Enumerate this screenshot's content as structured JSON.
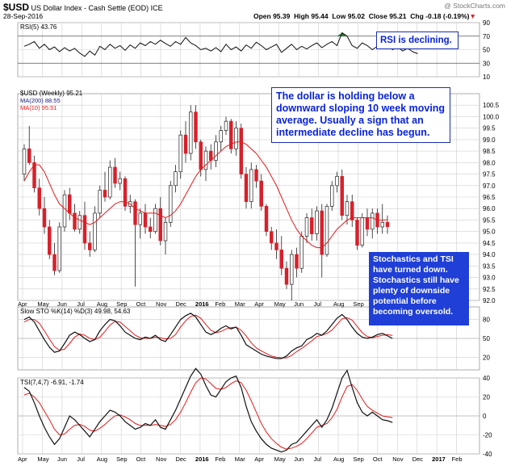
{
  "header": {
    "symbol": "$USD",
    "description": "US Dollar Index - Cash Settle (EOD) ICE",
    "date": "28-Sep-2016",
    "watermark": "@ StockCharts.com",
    "open": "Open 95.39",
    "high": "High 95.44",
    "low": "Low 95.02",
    "close": "Close 95.21",
    "chg": "Chg -0.18 (-0.19%)",
    "chg_arrow": "▼"
  },
  "annotations": {
    "rsi_note": "RSI is declining.",
    "dollar_note": [
      "The dollar is holding below a",
      "downward sloping 10 week moving",
      "average. Usually a sign that an",
      "intermediate decline has begun."
    ],
    "stoch_note": [
      "Stochastics and TSI",
      "have turned down.",
      "Stochastics still have",
      "plenty of downside",
      "potential before",
      "becoming oversold."
    ]
  },
  "colors": {
    "up": "#ffffff",
    "down": "#d8202a",
    "ma_fast": "#e41a1c",
    "ma_slow": "#1a237e",
    "indicator": "#111111",
    "signal": "#e41a1c",
    "grid": "#cfcfcf",
    "rsi_fill": "#2e7d32",
    "note_blue": "#1f3fd6"
  },
  "chart_data": [
    {
      "type": "line",
      "name": "RSI panel",
      "legend": [
        "RSI(5) 43.76"
      ],
      "ylim": [
        10,
        90
      ],
      "yticks": [
        10,
        30,
        50,
        70,
        90
      ],
      "bands": [
        30,
        70
      ],
      "x": [
        0,
        1,
        2,
        3,
        4,
        5,
        6,
        7,
        8,
        9,
        10,
        11,
        12,
        13,
        14,
        15,
        16,
        17,
        18,
        19,
        20,
        21,
        22,
        23,
        24,
        25,
        26,
        27,
        28,
        29,
        30,
        31,
        32,
        33,
        34,
        35,
        36,
        37,
        38,
        39,
        40,
        41,
        42,
        43,
        44,
        45,
        46,
        47,
        48,
        49,
        50,
        51,
        52,
        53,
        54,
        55,
        56,
        57,
        58,
        59,
        60,
        61,
        62,
        63,
        64,
        65,
        66,
        67,
        68,
        69,
        70,
        71,
        72,
        73,
        74,
        75,
        76,
        77,
        78
      ],
      "values": [
        55,
        58,
        62,
        52,
        58,
        50,
        54,
        47,
        53,
        48,
        52,
        45,
        40,
        48,
        42,
        55,
        50,
        58,
        52,
        56,
        49,
        57,
        52,
        60,
        56,
        62,
        58,
        64,
        59,
        55,
        62,
        58,
        68,
        60,
        56,
        50,
        52,
        48,
        53,
        47,
        58,
        50,
        54,
        48,
        57,
        52,
        61,
        56,
        50,
        54,
        58,
        46,
        52,
        58,
        50,
        55,
        51,
        56,
        60,
        53,
        58,
        62,
        56,
        75,
        70,
        56,
        52,
        60,
        56,
        50,
        55,
        52,
        58,
        50,
        54,
        48,
        52,
        47,
        44
      ]
    },
    {
      "type": "candlestick",
      "name": "Price panel",
      "legend": [
        "$USD (Weekly) 95.21",
        "MA(200) 88.55",
        "MA(10) 95.51"
      ],
      "ylim": [
        92,
        101
      ],
      "yticks": [
        92.0,
        92.5,
        93.0,
        93.5,
        94.0,
        94.5,
        95.0,
        95.5,
        96.0,
        96.5,
        97.0,
        97.5,
        98.0,
        98.5,
        99.0,
        99.5,
        100.0,
        100.5
      ],
      "xlabels": [
        "Apr",
        "May",
        "Jun",
        "Jul",
        "Aug",
        "Sep",
        "Oct",
        "Nov",
        "Dec",
        "2016",
        "Feb",
        "Mar",
        "Apr",
        "May",
        "Jun",
        "Jul",
        "Aug",
        "Sep",
        "Oct",
        "Nov",
        "Dec",
        "2017",
        "Feb"
      ],
      "ohlc": [
        [
          97.5,
          98.8,
          97.2,
          98.6
        ],
        [
          98.6,
          99.6,
          97.9,
          98.0
        ],
        [
          98.0,
          98.3,
          96.7,
          96.9
        ],
        [
          96.9,
          97.3,
          95.7,
          96.0
        ],
        [
          96.0,
          96.5,
          94.9,
          95.2
        ],
        [
          95.2,
          95.5,
          93.8,
          94.0
        ],
        [
          94.0,
          94.5,
          93.1,
          93.3
        ],
        [
          93.3,
          95.4,
          93.2,
          95.2
        ],
        [
          95.2,
          96.8,
          95.0,
          96.6
        ],
        [
          96.6,
          96.9,
          95.5,
          95.8
        ],
        [
          95.8,
          96.2,
          95.0,
          95.1
        ],
        [
          95.1,
          95.9,
          94.9,
          95.7
        ],
        [
          95.7,
          96.3,
          94.2,
          94.5
        ],
        [
          94.5,
          95.0,
          93.9,
          94.2
        ],
        [
          94.2,
          96.1,
          94.1,
          95.8
        ],
        [
          95.8,
          97.0,
          95.6,
          96.8
        ],
        [
          96.8,
          97.6,
          96.3,
          96.5
        ],
        [
          96.5,
          98.1,
          96.4,
          97.8
        ],
        [
          97.8,
          98.2,
          96.9,
          97.1
        ],
        [
          97.1,
          97.6,
          96.8,
          97.3
        ],
        [
          97.3,
          97.4,
          95.9,
          96.1
        ],
        [
          96.1,
          96.6,
          95.8,
          96.3
        ],
        [
          96.3,
          96.4,
          92.6,
          95.3
        ],
        [
          95.3,
          96.0,
          94.7,
          95.8
        ],
        [
          95.8,
          96.2,
          94.9,
          95.2
        ],
        [
          95.2,
          95.6,
          94.7,
          95.0
        ],
        [
          95.0,
          96.2,
          94.9,
          96.0
        ],
        [
          96.0,
          96.5,
          94.4,
          94.6
        ],
        [
          94.6,
          95.6,
          94.0,
          95.4
        ],
        [
          95.4,
          97.2,
          95.2,
          97.0
        ],
        [
          97.0,
          97.9,
          96.7,
          97.6
        ],
        [
          97.6,
          99.4,
          97.3,
          99.2
        ],
        [
          99.2,
          99.8,
          98.0,
          98.4
        ],
        [
          98.4,
          100.5,
          98.1,
          100.2
        ],
        [
          100.2,
          100.5,
          98.6,
          98.9
        ],
        [
          98.9,
          99.0,
          97.4,
          97.7
        ],
        [
          97.7,
          98.7,
          97.2,
          98.5
        ],
        [
          98.5,
          98.8,
          97.7,
          98.1
        ],
        [
          98.1,
          99.2,
          97.8,
          98.9
        ],
        [
          98.9,
          99.6,
          98.5,
          99.4
        ],
        [
          99.4,
          100.0,
          99.2,
          99.8
        ],
        [
          99.8,
          99.9,
          98.4,
          98.6
        ],
        [
          98.6,
          99.8,
          98.3,
          99.5
        ],
        [
          99.5,
          99.7,
          97.3,
          97.5
        ],
        [
          97.5,
          97.8,
          96.0,
          96.3
        ],
        [
          96.3,
          98.0,
          96.0,
          97.7
        ],
        [
          97.7,
          97.9,
          96.9,
          97.2
        ],
        [
          97.2,
          97.5,
          95.9,
          96.1
        ],
        [
          96.1,
          96.2,
          94.8,
          95.0
        ],
        [
          95.0,
          95.2,
          94.2,
          94.5
        ],
        [
          94.5,
          95.1,
          93.8,
          94.2
        ],
        [
          94.2,
          94.8,
          93.1,
          93.4
        ],
        [
          93.4,
          93.7,
          92.5,
          92.7
        ],
        [
          92.7,
          94.2,
          92.0,
          94.0
        ],
        [
          94.0,
          94.3,
          93.0,
          93.4
        ],
        [
          93.4,
          95.0,
          93.2,
          94.8
        ],
        [
          94.8,
          95.8,
          94.5,
          95.6
        ],
        [
          95.6,
          96.0,
          94.6,
          94.9
        ],
        [
          94.9,
          96.1,
          94.6,
          95.9
        ],
        [
          95.9,
          96.2,
          93.0,
          94.0
        ],
        [
          94.0,
          96.2,
          93.9,
          96.1
        ],
        [
          96.1,
          97.2,
          95.9,
          97.0
        ],
        [
          97.0,
          97.6,
          96.7,
          97.4
        ],
        [
          97.4,
          97.7,
          95.5,
          95.7
        ],
        [
          95.7,
          96.6,
          95.3,
          96.3
        ],
        [
          96.3,
          96.6,
          95.2,
          95.5
        ],
        [
          95.5,
          95.6,
          94.2,
          94.4
        ],
        [
          94.4,
          95.8,
          94.3,
          95.6
        ],
        [
          95.6,
          96.0,
          94.8,
          95.1
        ],
        [
          95.1,
          96.0,
          94.7,
          95.8
        ],
        [
          95.8,
          96.0,
          94.9,
          95.2
        ],
        [
          95.2,
          96.2,
          94.9,
          95.4
        ],
        [
          95.4,
          95.7,
          94.9,
          95.21
        ]
      ],
      "ma10": [
        97.2,
        97.6,
        97.9,
        97.9,
        97.6,
        97.1,
        96.6,
        96.2,
        96.0,
        95.8,
        95.6,
        95.5,
        95.4,
        95.3,
        95.4,
        95.6,
        95.8,
        96.0,
        96.2,
        96.3,
        96.3,
        96.2,
        96.0,
        95.9,
        95.8,
        95.8,
        95.8,
        95.7,
        95.6,
        95.7,
        95.9,
        96.2,
        96.6,
        97.0,
        97.4,
        97.7,
        97.9,
        98.1,
        98.3,
        98.5,
        98.7,
        98.8,
        98.9,
        98.9,
        98.8,
        98.6,
        98.4,
        98.1,
        97.8,
        97.4,
        97.0,
        96.5,
        96.0,
        95.5,
        95.1,
        94.8,
        94.6,
        94.4,
        94.3,
        94.3,
        94.5,
        94.8,
        95.1,
        95.3,
        95.5,
        95.6,
        95.6,
        95.6,
        95.6,
        95.6,
        95.5,
        95.5,
        95.51
      ]
    },
    {
      "type": "line",
      "name": "Slow Stochastic panel",
      "legend": [
        "Slow STO %K(14) %D(3) 49.98, 54.63"
      ],
      "ylim": [
        0,
        100
      ],
      "yticks": [
        20,
        50,
        80
      ],
      "series": [
        {
          "name": "%K",
          "values": [
            80,
            84,
            76,
            62,
            48,
            36,
            28,
            30,
            42,
            55,
            60,
            56,
            50,
            45,
            48,
            62,
            72,
            80,
            78,
            70,
            60,
            55,
            50,
            48,
            52,
            50,
            55,
            48,
            45,
            56,
            68,
            80,
            86,
            90,
            84,
            72,
            60,
            56,
            60,
            66,
            70,
            65,
            68,
            55,
            40,
            35,
            30,
            25,
            22,
            20,
            18,
            18,
            22,
            30,
            35,
            38,
            48,
            52,
            58,
            55,
            62,
            72,
            82,
            88,
            80,
            68,
            58,
            52,
            50,
            52,
            56,
            58,
            54,
            50
          ]
        },
        {
          "name": "%D",
          "values": [
            76,
            80,
            80,
            74,
            62,
            49,
            37,
            31,
            33,
            42,
            52,
            57,
            55,
            50,
            48,
            52,
            61,
            71,
            77,
            76,
            69,
            62,
            55,
            51,
            50,
            50,
            52,
            51,
            49,
            50,
            56,
            68,
            78,
            85,
            87,
            82,
            72,
            63,
            59,
            61,
            65,
            67,
            68,
            63,
            54,
            43,
            35,
            30,
            26,
            22,
            20,
            19,
            19,
            23,
            29,
            34,
            40,
            46,
            53,
            55,
            58,
            63,
            72,
            81,
            83,
            79,
            69,
            59,
            53,
            51,
            53,
            55,
            56,
            54.63
          ]
        }
      ]
    },
    {
      "type": "line",
      "name": "TSI panel",
      "legend": [
        "TSI(7,4,7) -6.91, -1.74"
      ],
      "ylim": [
        -40,
        40
      ],
      "yticks": [
        -40,
        -20,
        0,
        20,
        40
      ],
      "xlabels": [
        "Apr",
        "May",
        "Jun",
        "Jul",
        "Aug",
        "Sep",
        "Oct",
        "Nov",
        "Dec",
        "2016",
        "Feb",
        "Mar",
        "Apr",
        "May",
        "Jun",
        "Jul",
        "Aug",
        "Sep",
        "Oct",
        "Nov",
        "Dec",
        "2017",
        "Feb"
      ],
      "series": [
        {
          "name": "TSI",
          "values": [
            30,
            26,
            14,
            0,
            -12,
            -22,
            -30,
            -24,
            -12,
            0,
            -4,
            -10,
            -16,
            -22,
            -14,
            -6,
            0,
            6,
            4,
            0,
            -6,
            -10,
            -14,
            -12,
            -8,
            -10,
            -4,
            -12,
            -14,
            -4,
            6,
            18,
            30,
            42,
            50,
            44,
            32,
            22,
            20,
            28,
            36,
            40,
            42,
            30,
            10,
            -6,
            -16,
            -24,
            -30,
            -34,
            -36,
            -38,
            -36,
            -30,
            -28,
            -22,
            -16,
            -10,
            -4,
            -12,
            -4,
            8,
            24,
            40,
            48,
            30,
            14,
            4,
            0,
            4,
            0,
            -4,
            -5,
            -6.91
          ]
        },
        {
          "name": "Signal",
          "values": [
            22,
            24,
            20,
            14,
            5,
            -4,
            -14,
            -20,
            -19,
            -14,
            -10,
            -9,
            -11,
            -15,
            -16,
            -13,
            -9,
            -4,
            0,
            1,
            -1,
            -4,
            -8,
            -10,
            -10,
            -10,
            -9,
            -10,
            -11,
            -9,
            -4,
            4,
            14,
            25,
            35,
            40,
            39,
            34,
            29,
            28,
            30,
            34,
            37,
            35,
            27,
            16,
            4,
            -8,
            -17,
            -24,
            -29,
            -33,
            -35,
            -34,
            -32,
            -29,
            -24,
            -18,
            -12,
            -10,
            -8,
            -2,
            7,
            20,
            31,
            33,
            27,
            18,
            10,
            6,
            3,
            0,
            -1,
            -1.74
          ]
        }
      ]
    }
  ]
}
